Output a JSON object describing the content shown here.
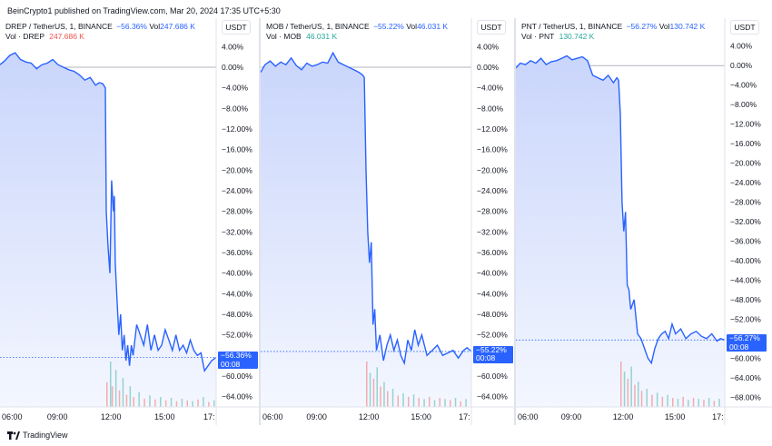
{
  "publisher_line": "BeinCrypto1 published on TradingView.com, Mar 20, 2024 17:35 UTC+5:30",
  "footer": {
    "logo_text": "TradingView",
    "logo_icon": "tradingview-logo-icon"
  },
  "colors": {
    "line": "#2962ff",
    "fill_top": "#c9d5fb",
    "fill_bottom": "#f4f7ff",
    "vol_red": "#ef5350",
    "vol_green": "#26a69a",
    "axis_bg": "#ffffff",
    "zero_line": "#b2b5be"
  },
  "charts": [
    {
      "symbol": "DREP / TetherUS, 1, BINANCE",
      "change": "−56.36%",
      "vol_label": "Vol",
      "vol_value": "247.686 K",
      "vol2_label": "Vol · DREP",
      "vol2_value": "247.686 K",
      "vol2_color": "red",
      "unit": "USDT",
      "price_tag": "−56.36%",
      "countdown": "00:08",
      "last_value": -56.36
    },
    {
      "symbol": "MOB / TetherUS, 1, BINANCE",
      "change": "−55.22%",
      "vol_label": "Vol",
      "vol_value": "46.031 K",
      "vol2_label": "Vol · MOB",
      "vol2_value": "46.031 K",
      "vol2_color": "green",
      "unit": "USDT",
      "price_tag": "−55.22%",
      "countdown": "00:08",
      "last_value": -55.22
    },
    {
      "symbol": "PNT / TetherUS, 1, BINANCE",
      "change": "−56.27%",
      "vol_label": "Vol",
      "vol_value": "130.742 K",
      "vol2_label": "Vol · PNT",
      "vol2_value": "130.742 K",
      "vol2_color": "green",
      "unit": "USDT",
      "price_tag": "−56.27%",
      "countdown": "00:08",
      "last_value": -56.27
    }
  ],
  "chart_data": [
    {
      "type": "area",
      "title": "DREP / TetherUS, 1, BINANCE",
      "y_unit": "%",
      "ylim": [
        -66,
        6
      ],
      "y_ticks": [
        "4.00%",
        "0.00%",
        "−4.00%",
        "−8.00%",
        "−12.00%",
        "−16.00%",
        "−20.00%",
        "−24.00%",
        "−28.00%",
        "−32.00%",
        "−36.00%",
        "−40.00%",
        "−44.00%",
        "−48.00%",
        "−52.00%",
        "−56.00%",
        "−60.00%",
        "−64.00%"
      ],
      "y_tick_values": [
        4,
        0,
        -4,
        -8,
        -12,
        -16,
        -20,
        -24,
        -28,
        -32,
        -36,
        -40,
        -44,
        -48,
        -52,
        -56,
        -60,
        -64
      ],
      "x_ticks": [
        "06:00",
        "09:00",
        "12:00",
        "15:00",
        "17:"
      ],
      "x_tick_hours": [
        6,
        9,
        12,
        15,
        17.75
      ],
      "x_range_hours": [
        5.75,
        17.85
      ],
      "series": [
        {
          "x": [
            5.75,
            6.0,
            6.3,
            6.6,
            6.9,
            7.2,
            7.5,
            7.8,
            8.1,
            8.4,
            8.7,
            9.0,
            9.3,
            9.6,
            9.9,
            10.2,
            10.5,
            10.8,
            11.1,
            11.3,
            11.5,
            11.65,
            11.7,
            11.8,
            11.9,
            12.0,
            12.1,
            12.15,
            12.2,
            12.3,
            12.4,
            12.5,
            12.6,
            12.7,
            12.8,
            12.9,
            13.0,
            13.1,
            13.2,
            13.4,
            13.6,
            13.8,
            14.0,
            14.2,
            14.4,
            14.6,
            14.8,
            15.0,
            15.2,
            15.4,
            15.6,
            15.8,
            16.0,
            16.2,
            16.4,
            16.6,
            16.8,
            17.0,
            17.2,
            17.4,
            17.6,
            17.85
          ],
          "y": [
            0.5,
            1.2,
            2.3,
            2.8,
            1.5,
            1.0,
            0.8,
            -0.3,
            0.5,
            0.8,
            1.5,
            0.5,
            0.0,
            -0.5,
            -0.8,
            -1.5,
            -2.5,
            -2.0,
            -3.5,
            -3.0,
            -3.2,
            -4.0,
            -28.0,
            -35.0,
            -40.0,
            -22.0,
            -28.0,
            -25.0,
            -38.0,
            -45.0,
            -52.0,
            -48.0,
            -55.0,
            -52.0,
            -57.0,
            -54.0,
            -58.0,
            -54.0,
            -56.0,
            -50.0,
            -52.0,
            -54.0,
            -50.0,
            -55.0,
            -52.0,
            -55.0,
            -54.0,
            -51.0,
            -53.0,
            -55.0,
            -52.0,
            -55.0,
            -54.0,
            -55.5,
            -53.0,
            -55.0,
            -56.0,
            -55.5,
            -59.0,
            -58.0,
            -57.0,
            -56.36
          ]
        }
      ],
      "volume": {
        "x": [
          11.7,
          11.9,
          12.0,
          12.2,
          12.4,
          12.6,
          12.8,
          13.0,
          13.2,
          13.5,
          13.8,
          14.1,
          14.4,
          14.7,
          15.0,
          15.3,
          15.6,
          15.9,
          16.2,
          16.5,
          16.8,
          17.1,
          17.4,
          17.7
        ],
        "v": [
          30,
          55,
          25,
          45,
          20,
          35,
          15,
          25,
          12,
          18,
          10,
          14,
          9,
          12,
          8,
          11,
          7,
          10,
          8,
          7,
          9,
          12,
          6,
          8
        ]
      }
    },
    {
      "type": "area",
      "title": "MOB / TetherUS, 1, BINANCE",
      "y_unit": "%",
      "ylim": [
        -66,
        6
      ],
      "y_ticks": [
        "4.00%",
        "0.00%",
        "−4.00%",
        "−8.00%",
        "−12.00%",
        "−16.00%",
        "−20.00%",
        "−24.00%",
        "−28.00%",
        "−32.00%",
        "−36.00%",
        "−40.00%",
        "−44.00%",
        "−48.00%",
        "−52.00%",
        "−56.00%",
        "−60.00%",
        "−64.00%"
      ],
      "y_tick_values": [
        4,
        0,
        -4,
        -8,
        -12,
        -16,
        -20,
        -24,
        -28,
        -32,
        -36,
        -40,
        -44,
        -48,
        -52,
        -56,
        -60,
        -64
      ],
      "x_ticks": [
        "06:00",
        "09:00",
        "12:00",
        "15:00",
        "17:"
      ],
      "x_tick_hours": [
        6,
        9,
        12,
        15,
        17.75
      ],
      "x_range_hours": [
        5.75,
        17.85
      ],
      "series": [
        {
          "x": [
            5.75,
            6.0,
            6.3,
            6.6,
            6.9,
            7.2,
            7.5,
            7.8,
            8.1,
            8.4,
            8.7,
            9.0,
            9.3,
            9.6,
            9.9,
            10.2,
            10.5,
            10.8,
            11.1,
            11.4,
            11.6,
            11.7,
            11.8,
            11.9,
            12.0,
            12.1,
            12.2,
            12.3,
            12.4,
            12.6,
            12.8,
            13.0,
            13.2,
            13.4,
            13.6,
            13.8,
            14.0,
            14.2,
            14.4,
            14.6,
            14.8,
            15.0,
            15.3,
            15.6,
            15.9,
            16.2,
            16.5,
            16.8,
            17.1,
            17.4,
            17.6,
            17.85
          ],
          "y": [
            -1.0,
            0.5,
            1.2,
            0.2,
            1.0,
            0.5,
            1.8,
            0.3,
            -0.5,
            0.8,
            0.2,
            0.5,
            1.0,
            0.8,
            2.8,
            1.0,
            0.5,
            0.0,
            -0.5,
            -1.0,
            -1.5,
            -2.0,
            -20.0,
            -32.0,
            -38.0,
            -34.0,
            -50.0,
            -47.0,
            -55.0,
            -52.0,
            -57.0,
            -54.0,
            -52.0,
            -55.0,
            -53.0,
            -56.0,
            -57.5,
            -53.0,
            -55.0,
            -51.0,
            -54.0,
            -52.0,
            -56.0,
            -55.0,
            -54.0,
            -56.0,
            -55.5,
            -55.0,
            -56.5,
            -55.0,
            -54.5,
            -55.22
          ]
        }
      ],
      "volume": {
        "x": [
          11.8,
          12.0,
          12.2,
          12.4,
          12.6,
          12.8,
          13.0,
          13.3,
          13.6,
          13.9,
          14.2,
          14.5,
          14.8,
          15.1,
          15.4,
          15.7,
          16.0,
          16.3,
          16.6,
          16.9,
          17.2,
          17.5
        ],
        "v": [
          40,
          30,
          25,
          35,
          18,
          22,
          14,
          16,
          10,
          12,
          9,
          11,
          8,
          7,
          9,
          6,
          8,
          7,
          6,
          8,
          5,
          7
        ]
      }
    },
    {
      "type": "area",
      "title": "PNT / TetherUS, 1, BINANCE",
      "y_unit": "%",
      "ylim": [
        -70,
        6
      ],
      "y_ticks": [
        "4.00%",
        "0.00%",
        "−4.00%",
        "−8.00%",
        "−12.00%",
        "−16.00%",
        "−20.00%",
        "−24.00%",
        "−28.00%",
        "−32.00%",
        "−36.00%",
        "−40.00%",
        "−44.00%",
        "−48.00%",
        "−52.00%",
        "−56.00%",
        "−60.00%",
        "−64.00%",
        "−68.00%"
      ],
      "y_tick_values": [
        4,
        0,
        -4,
        -8,
        -12,
        -16,
        -20,
        -24,
        -28,
        -32,
        -36,
        -40,
        -44,
        -48,
        -52,
        -56,
        -60,
        -64,
        -68
      ],
      "x_ticks": [
        "06:00",
        "09:00",
        "12:00",
        "15:00",
        "17:"
      ],
      "x_tick_hours": [
        6,
        9,
        12,
        15,
        17.75
      ],
      "x_range_hours": [
        5.75,
        17.85
      ],
      "series": [
        {
          "x": [
            5.75,
            6.0,
            6.3,
            6.6,
            6.9,
            7.2,
            7.5,
            7.8,
            8.1,
            8.4,
            8.7,
            9.0,
            9.3,
            9.6,
            9.9,
            10.2,
            10.5,
            10.8,
            11.1,
            11.4,
            11.6,
            11.7,
            11.8,
            11.9,
            12.0,
            12.1,
            12.2,
            12.3,
            12.4,
            12.6,
            12.8,
            13.0,
            13.2,
            13.4,
            13.6,
            13.8,
            14.0,
            14.2,
            14.4,
            14.6,
            14.8,
            15.0,
            15.3,
            15.6,
            15.9,
            16.2,
            16.5,
            16.8,
            17.1,
            17.4,
            17.6,
            17.85
          ],
          "y": [
            -0.5,
            0.5,
            0.2,
            1.0,
            0.5,
            1.5,
            0.2,
            0.8,
            1.0,
            1.5,
            2.0,
            1.2,
            1.5,
            1.8,
            1.0,
            -2.0,
            -2.5,
            -3.0,
            -2.0,
            -3.5,
            -2.5,
            -3.0,
            -10.0,
            -28.0,
            -34.0,
            -30.0,
            -45.0,
            -46.0,
            -50.0,
            -48.0,
            -55.0,
            -56.0,
            -58.0,
            -60.0,
            -61.0,
            -58.0,
            -56.0,
            -55.0,
            -54.5,
            -56.0,
            -53.0,
            -55.0,
            -54.0,
            -56.0,
            -55.0,
            -54.5,
            -55.5,
            -56.0,
            -55.0,
            -56.5,
            -56.0,
            -56.27
          ]
        }
      ],
      "volume": {
        "x": [
          11.8,
          12.0,
          12.2,
          12.4,
          12.6,
          12.8,
          13.0,
          13.3,
          13.6,
          13.9,
          14.2,
          14.5,
          14.8,
          15.1,
          15.4,
          15.7,
          16.0,
          16.3,
          16.6,
          16.9,
          17.2,
          17.5
        ],
        "v": [
          45,
          35,
          28,
          40,
          22,
          25,
          16,
          18,
          12,
          14,
          10,
          12,
          9,
          8,
          10,
          7,
          9,
          8,
          7,
          9,
          6,
          8
        ]
      }
    }
  ]
}
